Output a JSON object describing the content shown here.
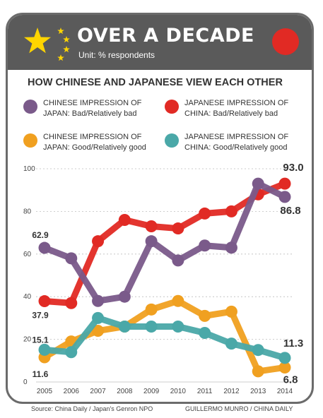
{
  "header": {
    "title": "OVER A DECADE",
    "unit": "Unit: % respondents",
    "colors": {
      "background": "#5a5a5a",
      "star": "#ffd500",
      "dot": "#e12a24"
    }
  },
  "subtitle": "HOW CHINESE AND JAPANESE VIEW EACH OTHER",
  "legend": [
    {
      "color": "#7a5a8a",
      "line1": "CHINESE IMPRESSION OF",
      "line2": "JAPAN: Bad/Relatively bad"
    },
    {
      "color": "#e12a24",
      "line1": "JAPANESE IMPRESSION OF",
      "line2": "CHINA: Bad/Relatively bad"
    },
    {
      "color": "#f0a020",
      "line1": "CHINESE IMPRESSION OF",
      "line2": "JAPAN: Good/Relatively good"
    },
    {
      "color": "#4aa8a8",
      "line1": "JAPANESE IMPRESSION OF",
      "line2": "CHINA: Good/Relatively good"
    }
  ],
  "chart_data": {
    "type": "line",
    "x": [
      "2005",
      "2006",
      "2007",
      "2008",
      "2009",
      "2010",
      "2011",
      "2012",
      "2013",
      "2014"
    ],
    "yticks": [
      "0",
      "20",
      "40",
      "60",
      "80",
      "100"
    ],
    "ylim": [
      0,
      100
    ],
    "grid": true,
    "series": [
      {
        "name": "JAPANESE IMPRESSION OF CHINA: Bad/Relatively bad",
        "color": "#e12a24",
        "values": [
          37.9,
          37,
          66,
          76,
          73,
          72,
          79,
          80,
          88,
          93.0
        ]
      },
      {
        "name": "CHINESE IMPRESSION OF JAPAN: Bad/Relatively bad",
        "color": "#7a5a8a",
        "values": [
          62.9,
          58,
          38,
          40,
          66,
          57,
          64,
          63,
          93,
          86.8
        ]
      },
      {
        "name": "CHINESE IMPRESSION OF JAPAN: Good/Relatively good",
        "color": "#f0a020",
        "values": [
          11.6,
          19,
          24,
          26,
          34,
          38,
          31,
          33,
          5,
          6.8
        ]
      },
      {
        "name": "JAPANESE IMPRESSION OF CHINA: Good/Relatively good",
        "color": "#4aa8a8",
        "values": [
          15.1,
          14,
          30,
          26,
          26,
          26,
          23,
          18,
          15,
          11.3
        ]
      }
    ],
    "annotations": [
      {
        "text": "62.9",
        "series": 1,
        "index": 0,
        "style": "small"
      },
      {
        "text": "37.9",
        "series": 0,
        "index": 0,
        "style": "small"
      },
      {
        "text": "15.1",
        "series": 3,
        "index": 0,
        "style": "small"
      },
      {
        "text": "11.6",
        "series": 2,
        "index": 0,
        "style": "small"
      },
      {
        "text": "93.0",
        "series": 0,
        "index": 9,
        "style": "big"
      },
      {
        "text": "86.8",
        "series": 1,
        "index": 9,
        "style": "big"
      },
      {
        "text": "11.3",
        "series": 3,
        "index": 9,
        "style": "big"
      },
      {
        "text": "6.8",
        "series": 2,
        "index": 9,
        "style": "big"
      }
    ]
  },
  "footer": {
    "source": "Source: China Daily / Japan's Genron NPO",
    "credit": "GUILLERMO MUNRO / CHINA DAILY"
  }
}
